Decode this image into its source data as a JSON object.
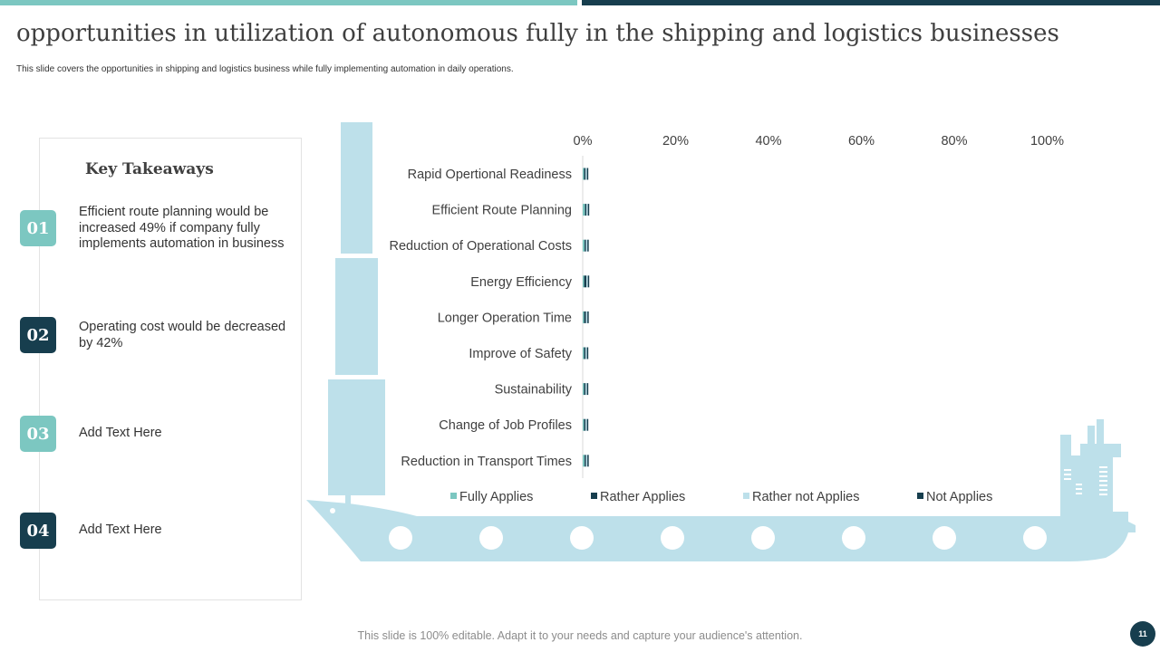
{
  "slide": {
    "title": "opportunities in utilization of autonomous fully in the shipping and logistics businesses",
    "subtitle": "This slide covers the opportunities in shipping and logistics business while fully implementing  automation in daily operations.",
    "footer": "This slide is 100% editable. Adapt it to your needs and capture your audience's attention.",
    "page_number": "11"
  },
  "takeaways": {
    "title": "Key Takeaways",
    "items": [
      {
        "num": "01",
        "text": "Efficient route planning would be increased 49% if company fully implements automation in business"
      },
      {
        "num": "02",
        "text": "Operating cost would be decreased by 42%"
      },
      {
        "num": "03",
        "text": "Add Text Here"
      },
      {
        "num": "04",
        "text": "Add Text Here"
      }
    ]
  },
  "colors": {
    "teal": "#7cc7c1",
    "dark_navy": "#173e4e",
    "light_blue": "#bde0ea"
  },
  "chart_data": {
    "type": "bar",
    "orientation": "horizontal",
    "stacked": true,
    "categories": [
      "Rapid Opertional Readiness",
      "Efficient Route Planning",
      "Reduction of Operational Costs",
      "Energy Efficiency",
      "Longer Operation Time",
      "Improve of Safety",
      "Sustainability",
      "Change of Job Profiles",
      "Reduction in Transport Times"
    ],
    "series": [
      {
        "name": "Fully Applies",
        "color": "#7cc7c1",
        "values": [
          0.3,
          0.5,
          0.4,
          0.3,
          0.3,
          0.3,
          0.3,
          0.3,
          0.4
        ]
      },
      {
        "name": "Rather Applies",
        "color": "#173e4e",
        "values": [
          0.3,
          0.3,
          0.3,
          0.5,
          0.4,
          0.3,
          0.3,
          0.3,
          0.3
        ]
      },
      {
        "name": "Rather not Applies",
        "color": "#bde0ea",
        "values": [
          0.3,
          0.3,
          0.3,
          0.3,
          0.3,
          0.3,
          0.3,
          0.3,
          0.3
        ]
      },
      {
        "name": "Not Applies",
        "color": "#173e4e",
        "values": [
          0.3,
          0.3,
          0.3,
          0.3,
          0.3,
          0.3,
          0.3,
          0.3,
          0.3
        ]
      }
    ],
    "x_ticks": [
      "0%",
      "20%",
      "40%",
      "60%",
      "80%",
      "100%"
    ],
    "xlim": [
      0,
      100
    ],
    "legend_position": "bottom",
    "grid": false
  }
}
